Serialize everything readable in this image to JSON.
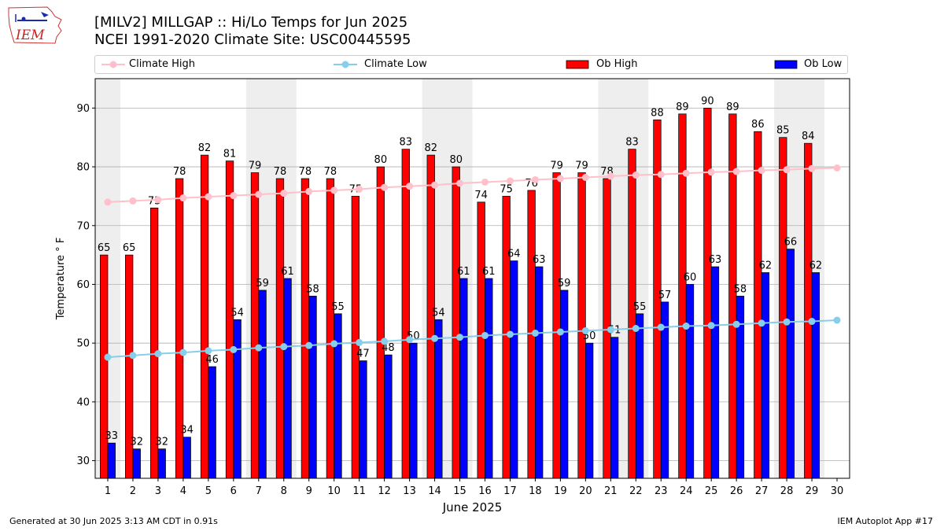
{
  "header": {
    "logo_text": "IEM",
    "title_line1": "[MILV2] MILLGAP :: Hi/Lo Temps for Jun 2025",
    "title_line2": "NCEI 1991-2020 Climate Site: USC00445595"
  },
  "footer": {
    "left": "Generated at 30 Jun 2025 3:13 AM CDT in 0.91s",
    "right": "IEM Autoplot App #17"
  },
  "colors": {
    "climate_high": "#ffc0cb",
    "climate_low": "#87ceeb",
    "ob_high": "#ff0000",
    "ob_low": "#0000ff",
    "weekend_band": "#eeeeee",
    "grid": "#b0b0b0"
  },
  "chart_data": {
    "type": "bar",
    "title": "[MILV2] MILLGAP :: Hi/Lo Temps for Jun 2025",
    "xlabel": "June 2025",
    "ylabel": "Temperature ° F",
    "ylim": [
      27,
      95
    ],
    "yticks": [
      30,
      40,
      50,
      60,
      70,
      80,
      90
    ],
    "xlim": [
      0.5,
      30.5
    ],
    "categories": [
      "1",
      "2",
      "3",
      "4",
      "5",
      "6",
      "7",
      "8",
      "9",
      "10",
      "11",
      "12",
      "13",
      "14",
      "15",
      "16",
      "17",
      "18",
      "19",
      "20",
      "21",
      "22",
      "23",
      "24",
      "25",
      "26",
      "27",
      "28",
      "29",
      "30"
    ],
    "grid": "horizontal",
    "legend": "top, above plot",
    "weekend_bands": [
      [
        0.5,
        1.5
      ],
      [
        6.5,
        8.5
      ],
      [
        13.5,
        15.5
      ],
      [
        20.5,
        22.5
      ],
      [
        27.5,
        29.5
      ]
    ],
    "series": [
      {
        "name": "Ob High",
        "kind": "bar",
        "values": [
          65,
          65,
          73,
          78,
          82,
          81,
          79,
          78,
          78,
          78,
          75,
          80,
          83,
          82,
          80,
          74,
          75,
          76,
          79,
          79,
          78,
          83,
          88,
          89,
          90,
          89,
          86,
          85,
          84,
          null
        ]
      },
      {
        "name": "Ob Low",
        "kind": "bar",
        "values": [
          33,
          32,
          32,
          34,
          46,
          54,
          59,
          61,
          58,
          55,
          47,
          48,
          50,
          54,
          61,
          61,
          64,
          63,
          59,
          50,
          51,
          55,
          57,
          60,
          63,
          58,
          62,
          66,
          62,
          null
        ]
      },
      {
        "name": "Climate High",
        "kind": "line",
        "values": [
          74.0,
          74.2,
          74.4,
          74.7,
          74.9,
          75.1,
          75.3,
          75.5,
          75.8,
          76.0,
          76.2,
          76.5,
          76.7,
          76.9,
          77.2,
          77.4,
          77.6,
          77.8,
          78.0,
          78.2,
          78.4,
          78.6,
          78.7,
          78.9,
          79.1,
          79.2,
          79.4,
          79.5,
          79.7,
          79.8
        ]
      },
      {
        "name": "Climate Low",
        "kind": "line",
        "values": [
          47.6,
          47.9,
          48.2,
          48.4,
          48.7,
          48.9,
          49.2,
          49.4,
          49.6,
          49.9,
          50.1,
          50.3,
          50.6,
          50.8,
          51.0,
          51.3,
          51.5,
          51.7,
          51.9,
          52.1,
          52.3,
          52.5,
          52.7,
          52.9,
          53.0,
          53.2,
          53.4,
          53.6,
          53.7,
          53.9
        ]
      }
    ]
  }
}
